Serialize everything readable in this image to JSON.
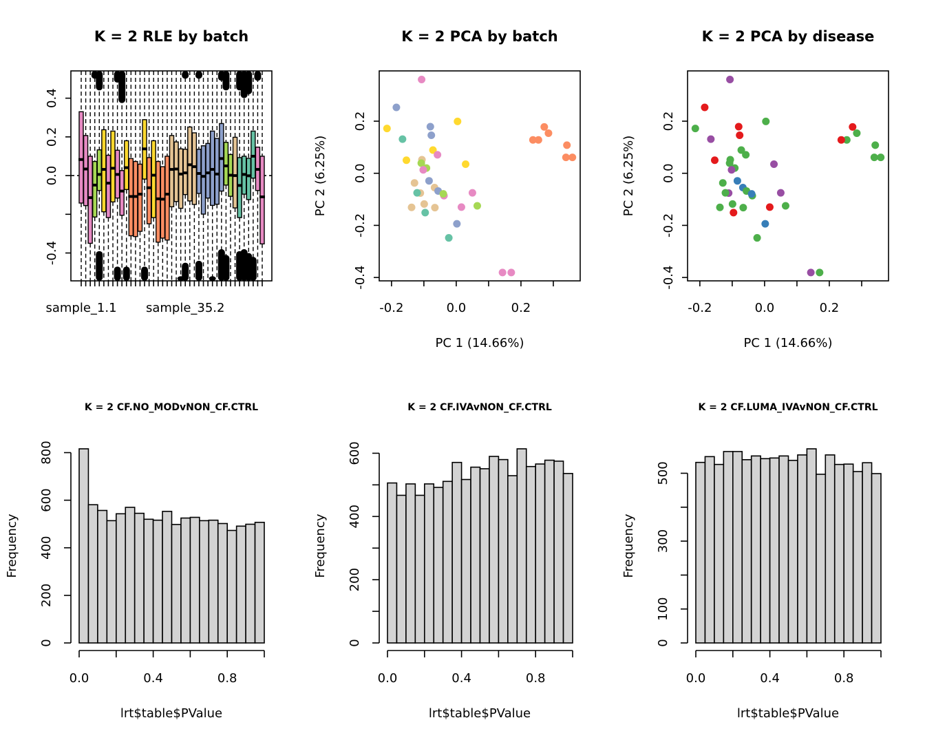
{
  "chart_data": [
    {
      "type": "box",
      "title": "K = 2 RLE by batch",
      "xlabel": "",
      "ylabel": "",
      "ylim": [
        -0.544,
        0.541
      ],
      "yticks": [
        -0.4,
        -0.2,
        0.0,
        0.2,
        0.4
      ],
      "ytick_labels": [
        "-0.4",
        "",
        "0.0",
        "0.2",
        "0.4"
      ],
      "xtick_labels": [
        {
          "index": 0,
          "label": "sample_1.1"
        },
        {
          "index": 23,
          "label": "sample_35.2"
        }
      ],
      "reference_line": 0,
      "boxes": [
        {
          "color": "#E78AC3",
          "q1": -0.142,
          "median": 0.083,
          "q3": 0.33
        },
        {
          "color": "#E78AC3",
          "q1": -0.155,
          "median": 0.034,
          "q3": 0.207
        },
        {
          "color": "#E78AC3",
          "q1": -0.35,
          "median": -0.114,
          "q3": 0.1
        },
        {
          "color": "#A6D854",
          "q1": -0.214,
          "median": -0.049,
          "q3": 0.073,
          "outlier_high": 0.5
        },
        {
          "color": "#A6D854",
          "q1": -0.077,
          "median": 0.006,
          "q3": 0.133,
          "outlier_high": 0.44,
          "outlier_low": -0.39
        },
        {
          "color": "#FFD92F",
          "q1": -0.187,
          "median": 0.032,
          "q3": 0.237
        },
        {
          "color": "#E78AC3",
          "q1": -0.217,
          "median": -0.039,
          "q3": 0.105
        },
        {
          "color": "#FFD92F",
          "q1": -0.136,
          "median": 0.038,
          "q3": 0.23
        },
        {
          "color": "#E78AC3",
          "q1": -0.116,
          "median": 0.006,
          "q3": 0.131,
          "outlier_high": 0.48,
          "outlier_low": -0.47
        },
        {
          "color": "#E78AC3",
          "q1": -0.205,
          "median": -0.08,
          "q3": 0.026,
          "outlier_high": 0.375
        },
        {
          "color": "#FFD92F",
          "q1": -0.072,
          "median": 0.041,
          "q3": 0.18,
          "outlier_low": -0.47
        },
        {
          "color": "#FC8D62",
          "q1": -0.311,
          "median": -0.108,
          "q3": 0.088
        },
        {
          "color": "#FC8D62",
          "q1": -0.315,
          "median": -0.108,
          "q3": 0.073
        },
        {
          "color": "#FC8D62",
          "q1": -0.288,
          "median": -0.096,
          "q3": 0.059
        },
        {
          "color": "#FFD92F",
          "q1": -0.018,
          "median": 0.138,
          "q3": 0.289,
          "outlier_low": -0.47
        },
        {
          "color": "#FC8D62",
          "q1": -0.249,
          "median": -0.063,
          "q3": 0.093
        },
        {
          "color": "#FFD92F",
          "q1": -0.217,
          "median": 0.002,
          "q3": 0.18
        },
        {
          "color": "#FC8D62",
          "q1": -0.344,
          "median": -0.12,
          "q3": 0.073
        },
        {
          "color": "#FC8D62",
          "q1": -0.323,
          "median": -0.122,
          "q3": 0.046
        },
        {
          "color": "#FC8D62",
          "q1": -0.333,
          "median": -0.096,
          "q3": 0.1
        },
        {
          "color": "#E5C494",
          "q1": -0.161,
          "median": 0.032,
          "q3": 0.207
        },
        {
          "color": "#E5C494",
          "q1": -0.134,
          "median": 0.034,
          "q3": 0.174
        },
        {
          "color": "#E5C494",
          "q1": -0.169,
          "median": 0.008,
          "q3": 0.138,
          "outlier_low": -0.52
        },
        {
          "color": "#E5C494",
          "q1": -0.098,
          "median": 0.014,
          "q3": 0.136,
          "outlier_high": 0.5,
          "outlier_low": -0.45
        },
        {
          "color": "#E5C494",
          "q1": -0.131,
          "median": 0.056,
          "q3": 0.251
        },
        {
          "color": "#E5C494",
          "q1": -0.149,
          "median": 0.046,
          "q3": 0.221
        },
        {
          "color": "#8DA0CB",
          "q1": -0.092,
          "median": 0.011,
          "q3": 0.136,
          "outlier_high": 0.5,
          "outlier_low": -0.44
        },
        {
          "color": "#8DA0CB",
          "q1": -0.199,
          "median": -0.004,
          "q3": 0.154
        },
        {
          "color": "#8DA0CB",
          "q1": -0.116,
          "median": 0.014,
          "q3": 0.166
        },
        {
          "color": "#8DA0CB",
          "q1": -0.154,
          "median": 0.032,
          "q3": 0.23,
          "outlier_low": -0.52
        },
        {
          "color": "#8DA0CB",
          "q1": -0.148,
          "median": 0.008,
          "q3": 0.192
        },
        {
          "color": "#8DA0CB",
          "q1": -0.08,
          "median": 0.088,
          "q3": 0.269,
          "outlier_high": 0.49,
          "outlier_low": -0.38
        },
        {
          "color": "#A6D854",
          "q1": -0.049,
          "median": 0.05,
          "q3": 0.172,
          "outlier_high": 0.44,
          "outlier_low": -0.41
        },
        {
          "color": "#A6D854",
          "q1": -0.107,
          "median": 0.002,
          "q3": 0.109
        },
        {
          "color": "#E5C494",
          "q1": -0.167,
          "median": 0.0,
          "q3": 0.198
        },
        {
          "color": "#66C2A5",
          "q1": -0.217,
          "median": -0.051,
          "q3": 0.093,
          "outlier_high": 0.44,
          "outlier_low": -0.39
        },
        {
          "color": "#66C2A5",
          "q1": -0.096,
          "median": 0.006,
          "q3": 0.1,
          "outlier_high": 0.4,
          "outlier_low": -0.38
        },
        {
          "color": "#66C2A5",
          "q1": -0.124,
          "median": -0.001,
          "q3": 0.089,
          "outlier_high": 0.42,
          "outlier_low": -0.4
        },
        {
          "color": "#66C2A5",
          "q1": -0.013,
          "median": 0.1,
          "q3": 0.23,
          "outlier_low": -0.42
        },
        {
          "color": "#E78AC3",
          "q1": -0.077,
          "median": 0.032,
          "q3": 0.147,
          "outlier_high": 0.49
        },
        {
          "color": "#E78AC3",
          "q1": -0.353,
          "median": -0.11,
          "q3": 0.1
        }
      ]
    },
    {
      "type": "scatter",
      "title": "K = 2 PCA by batch",
      "xlabel": "PC 1 (14.66%)",
      "ylabel": "PC 2 (6.25%)",
      "xlim": [
        -0.238,
        0.383
      ],
      "ylim": [
        -0.413,
        0.393
      ],
      "xticks": [
        -0.2,
        -0.1,
        0.0,
        0.1,
        0.2,
        0.3
      ],
      "xtick_labels": [
        "-0.2",
        "",
        "0.0",
        "",
        "0.2",
        ""
      ],
      "yticks": [
        -0.4,
        -0.2,
        0.0,
        0.2
      ],
      "ytick_labels": [
        "-0.4",
        "-0.2",
        "0.0",
        "0.2"
      ],
      "points": [
        [
          -0.107,
          0.36,
          "#E78AC3"
        ],
        [
          -0.185,
          0.253,
          "#8DA0CB"
        ],
        [
          0.004,
          0.199,
          "#FFD92F"
        ],
        [
          -0.214,
          0.172,
          "#FFD92F"
        ],
        [
          -0.08,
          0.179,
          "#8DA0CB"
        ],
        [
          -0.077,
          0.146,
          "#8DA0CB"
        ],
        [
          -0.166,
          0.131,
          "#66C2A5"
        ],
        [
          -0.072,
          0.089,
          "#FFD92F"
        ],
        [
          -0.058,
          0.071,
          "#E78AC3"
        ],
        [
          0.272,
          0.178,
          "#FC8D62"
        ],
        [
          0.285,
          0.154,
          "#FC8D62"
        ],
        [
          0.237,
          0.128,
          "#FC8D62"
        ],
        [
          0.254,
          0.128,
          "#FC8D62"
        ],
        [
          0.342,
          0.108,
          "#FC8D62"
        ],
        [
          0.339,
          0.061,
          "#FC8D62"
        ],
        [
          0.359,
          0.061,
          "#FC8D62"
        ],
        [
          -0.154,
          0.05,
          "#FFD92F"
        ],
        [
          0.029,
          0.035,
          "#FFD92F"
        ],
        [
          -0.106,
          0.052,
          "#E5C494"
        ],
        [
          -0.108,
          0.039,
          "#A6D854"
        ],
        [
          -0.092,
          0.02,
          "#A6D854"
        ],
        [
          -0.102,
          0.013,
          "#E78AC3"
        ],
        [
          -0.129,
          -0.037,
          "#E5C494"
        ],
        [
          -0.084,
          -0.029,
          "#8DA0CB"
        ],
        [
          -0.067,
          -0.055,
          "#E5C494"
        ],
        [
          -0.056,
          -0.068,
          "#8DA0CB"
        ],
        [
          -0.038,
          -0.086,
          "#E78AC3"
        ],
        [
          -0.04,
          -0.079,
          "#A6D854"
        ],
        [
          -0.111,
          -0.076,
          "#E5C494"
        ],
        [
          -0.121,
          -0.075,
          "#66C2A5"
        ],
        [
          0.05,
          -0.075,
          "#E78AC3"
        ],
        [
          0.065,
          -0.125,
          "#A6D854"
        ],
        [
          0.016,
          -0.13,
          "#E78AC3"
        ],
        [
          -0.138,
          -0.131,
          "#E5C494"
        ],
        [
          -0.099,
          -0.118,
          "#E5C494"
        ],
        [
          -0.066,
          -0.132,
          "#E5C494"
        ],
        [
          -0.096,
          -0.151,
          "#66C2A5"
        ],
        [
          0.002,
          -0.194,
          "#8DA0CB"
        ],
        [
          -0.023,
          -0.248,
          "#66C2A5"
        ],
        [
          0.143,
          -0.381,
          "#E78AC3"
        ],
        [
          0.17,
          -0.381,
          "#E78AC3"
        ]
      ]
    },
    {
      "type": "scatter",
      "title": "K = 2 PCA by disease",
      "xlabel": "PC 1 (14.66%)",
      "ylabel": "PC 2 (6.25%)",
      "xlim": [
        -0.238,
        0.383
      ],
      "ylim": [
        -0.413,
        0.393
      ],
      "xticks": [
        -0.2,
        -0.1,
        0.0,
        0.1,
        0.2,
        0.3
      ],
      "xtick_labels": [
        "-0.2",
        "",
        "0.0",
        "",
        "0.2",
        ""
      ],
      "yticks": [
        -0.4,
        -0.2,
        0.0,
        0.2
      ],
      "ytick_labels": [
        "-0.4",
        "-0.2",
        "0.0",
        "0.2"
      ],
      "points": [
        [
          -0.107,
          0.36,
          "#984EA3"
        ],
        [
          -0.185,
          0.253,
          "#E41A1C"
        ],
        [
          0.004,
          0.199,
          "#4DAF4A"
        ],
        [
          -0.214,
          0.172,
          "#4DAF4A"
        ],
        [
          -0.08,
          0.179,
          "#E41A1C"
        ],
        [
          -0.077,
          0.146,
          "#E41A1C"
        ],
        [
          -0.166,
          0.131,
          "#984EA3"
        ],
        [
          -0.072,
          0.089,
          "#4DAF4A"
        ],
        [
          -0.058,
          0.071,
          "#4DAF4A"
        ],
        [
          0.272,
          0.178,
          "#E41A1C"
        ],
        [
          0.285,
          0.154,
          "#4DAF4A"
        ],
        [
          0.254,
          0.128,
          "#4DAF4A"
        ],
        [
          0.237,
          0.128,
          "#E41A1C"
        ],
        [
          0.342,
          0.108,
          "#4DAF4A"
        ],
        [
          0.339,
          0.061,
          "#4DAF4A"
        ],
        [
          0.359,
          0.061,
          "#4DAF4A"
        ],
        [
          -0.154,
          0.05,
          "#E41A1C"
        ],
        [
          0.029,
          0.035,
          "#984EA3"
        ],
        [
          -0.106,
          0.052,
          "#4DAF4A"
        ],
        [
          -0.108,
          0.039,
          "#4DAF4A"
        ],
        [
          -0.092,
          0.02,
          "#4DAF4A"
        ],
        [
          -0.102,
          0.013,
          "#984EA3"
        ],
        [
          -0.129,
          -0.037,
          "#4DAF4A"
        ],
        [
          -0.084,
          -0.029,
          "#377EB8"
        ],
        [
          -0.067,
          -0.055,
          "#377EB8"
        ],
        [
          -0.056,
          -0.068,
          "#4DAF4A"
        ],
        [
          -0.038,
          -0.086,
          "#4DAF4A"
        ],
        [
          -0.04,
          -0.079,
          "#377EB8"
        ],
        [
          -0.111,
          -0.076,
          "#984EA3"
        ],
        [
          -0.121,
          -0.075,
          "#4DAF4A"
        ],
        [
          0.05,
          -0.075,
          "#984EA3"
        ],
        [
          0.065,
          -0.125,
          "#4DAF4A"
        ],
        [
          0.016,
          -0.13,
          "#E41A1C"
        ],
        [
          -0.138,
          -0.131,
          "#4DAF4A"
        ],
        [
          -0.099,
          -0.118,
          "#4DAF4A"
        ],
        [
          -0.066,
          -0.132,
          "#4DAF4A"
        ],
        [
          -0.096,
          -0.151,
          "#E41A1C"
        ],
        [
          0.002,
          -0.194,
          "#377EB8"
        ],
        [
          -0.023,
          -0.248,
          "#4DAF4A"
        ],
        [
          0.143,
          -0.381,
          "#984EA3"
        ],
        [
          0.17,
          -0.381,
          "#4DAF4A"
        ]
      ]
    },
    {
      "type": "bar",
      "title": "K = 2 CF.NO_MODvNON_CF.CTRL",
      "xlabel": "lrt$table$PValue",
      "ylabel": "Frequency",
      "bin_width": 0.05,
      "xlim": [
        0,
        1
      ],
      "xticks": [
        0,
        0.2,
        0.4,
        0.6,
        0.8,
        1.0
      ],
      "xtick_labels": [
        "0.0",
        "",
        "0.4",
        "",
        "0.8",
        ""
      ],
      "yticks": [
        0,
        200,
        400,
        600,
        800
      ],
      "ytick_labels": [
        "0",
        "200",
        "400",
        "600",
        "800"
      ],
      "values": [
        816,
        581,
        557,
        514,
        543,
        570,
        545,
        520,
        516,
        553,
        498,
        525,
        528,
        514,
        516,
        502,
        473,
        491,
        499,
        507
      ]
    },
    {
      "type": "bar",
      "title": "K = 2 CF.IVAvNON_CF.CTRL",
      "xlabel": "lrt$table$PValue",
      "ylabel": "Frequency",
      "bin_width": 0.05,
      "xlim": [
        0,
        1
      ],
      "xticks": [
        0,
        0.2,
        0.4,
        0.6,
        0.8,
        1.0
      ],
      "xtick_labels": [
        "0.0",
        "",
        "0.4",
        "",
        "0.8",
        ""
      ],
      "yticks": [
        0,
        100,
        200,
        300,
        400,
        500,
        600
      ],
      "ytick_labels": [
        "0",
        "",
        "200",
        "",
        "400",
        "",
        "600"
      ],
      "values": [
        506,
        467,
        503,
        467,
        503,
        492,
        511,
        571,
        517,
        556,
        551,
        590,
        580,
        529,
        614,
        558,
        566,
        578,
        575,
        536
      ]
    },
    {
      "type": "bar",
      "title": "K = 2 CF.LUMA_IVAvNON_CF.CTRL",
      "xlabel": "lrt$table$PValue",
      "ylabel": "Frequency",
      "bin_width": 0.05,
      "xlim": [
        0,
        1
      ],
      "xticks": [
        0,
        0.2,
        0.4,
        0.6,
        0.8,
        1.0
      ],
      "xtick_labels": [
        "0.0",
        "",
        "0.4",
        "",
        "0.8",
        ""
      ],
      "yticks": [
        0,
        100,
        200,
        300,
        400,
        500
      ],
      "ytick_labels": [
        "0",
        "100",
        "",
        "300",
        "",
        "500"
      ],
      "values": [
        532,
        549,
        526,
        564,
        564,
        540,
        551,
        543,
        545,
        551,
        538,
        554,
        572,
        497,
        554,
        526,
        527,
        505,
        531,
        499
      ]
    }
  ]
}
